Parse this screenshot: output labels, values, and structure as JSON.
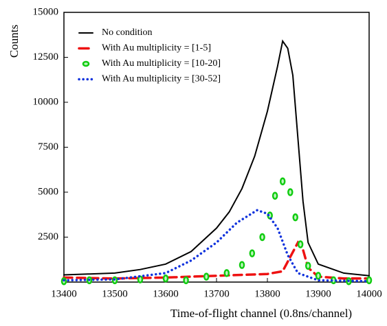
{
  "chart_data": {
    "type": "line",
    "xlabel": "Time-of-flight channel (0.8ns/channel)",
    "ylabel": "Counts",
    "xlim": [
      13400,
      14000
    ],
    "xticks": [
      13400,
      13500,
      13600,
      13700,
      13800,
      13900,
      14000
    ],
    "ylim": [
      0,
      15000
    ],
    "yticks": [
      2500,
      5000,
      7500,
      10000,
      12500,
      15000
    ],
    "legend": "upper left",
    "series": [
      {
        "name": "No condition",
        "color": "#000000",
        "style": "solid",
        "x": [
          13400,
          13450,
          13500,
          13550,
          13600,
          13650,
          13700,
          13725,
          13750,
          13775,
          13800,
          13820,
          13830,
          13840,
          13850,
          13860,
          13870,
          13880,
          13900,
          13950,
          14000
        ],
        "values": [
          400,
          450,
          500,
          700,
          1000,
          1700,
          3000,
          3900,
          5200,
          7000,
          9500,
          12000,
          13400,
          13000,
          11500,
          8000,
          4500,
          2200,
          1000,
          500,
          350
        ]
      },
      {
        "name": "With Au multiplicity = [1-5]",
        "color": "#ee1111",
        "style": "dashed",
        "x": [
          13400,
          13500,
          13600,
          13700,
          13750,
          13800,
          13830,
          13845,
          13860,
          13870,
          13880,
          13900,
          13950,
          14000
        ],
        "values": [
          250,
          200,
          250,
          350,
          400,
          450,
          600,
          1400,
          2200,
          1800,
          800,
          300,
          200,
          200
        ]
      },
      {
        "name": "With Au multiplicity = [10-20]",
        "color": "#11cc11",
        "style": "markers",
        "x": [
          13400,
          13450,
          13500,
          13550,
          13600,
          13640,
          13680,
          13720,
          13750,
          13770,
          13790,
          13805,
          13815,
          13830,
          13845,
          13855,
          13865,
          13880,
          13900,
          13930,
          13960,
          14000
        ],
        "values": [
          50,
          100,
          100,
          150,
          200,
          100,
          300,
          500,
          950,
          1600,
          2500,
          3700,
          4800,
          5600,
          5000,
          3600,
          2100,
          900,
          350,
          100,
          50,
          100
        ]
      },
      {
        "name": "With Au multiplicity = [30-52]",
        "color": "#1133dd",
        "style": "dotted",
        "x": [
          13400,
          13500,
          13600,
          13650,
          13700,
          13740,
          13780,
          13800,
          13820,
          13840,
          13860,
          13900,
          14000
        ],
        "values": [
          100,
          150,
          500,
          1200,
          2200,
          3300,
          4000,
          3800,
          3000,
          1500,
          500,
          100,
          50
        ]
      }
    ]
  }
}
